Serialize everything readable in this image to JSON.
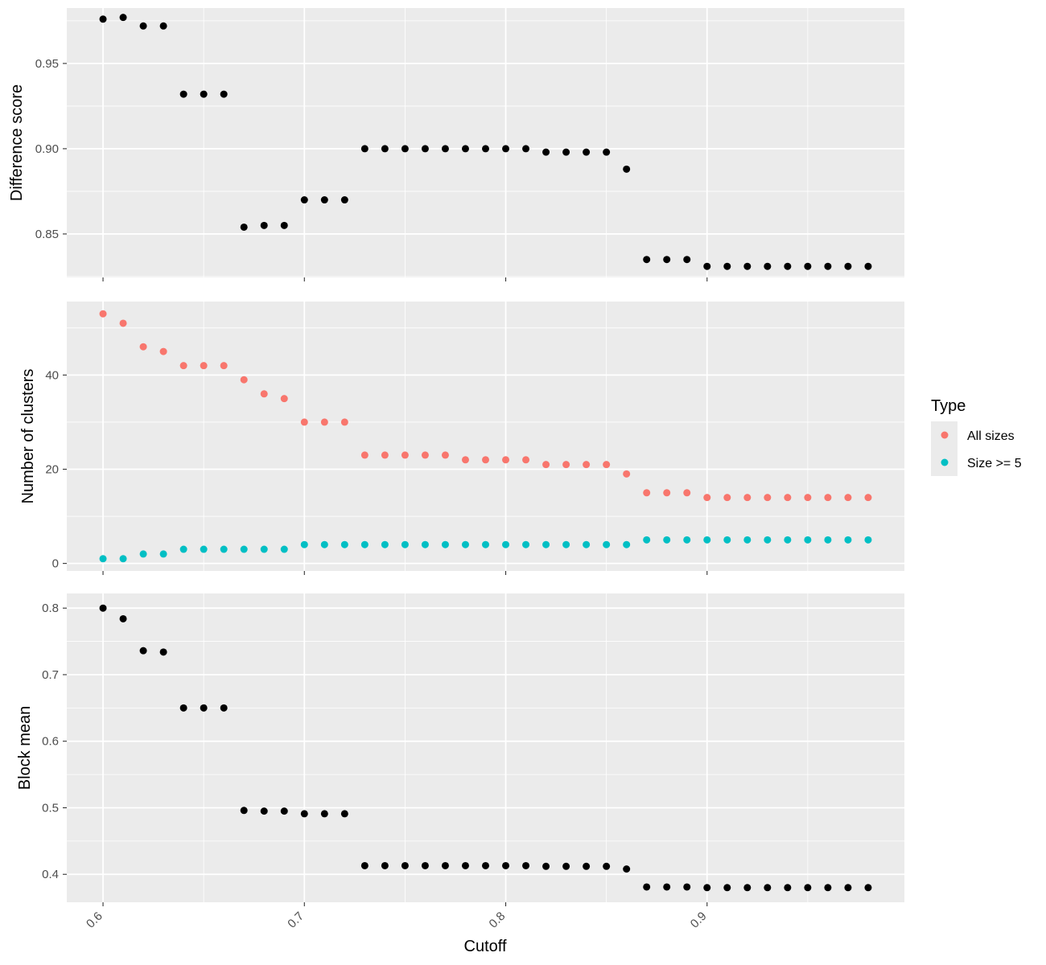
{
  "chart_data": {
    "type": "scatter",
    "x": [
      0.6,
      0.61,
      0.62,
      0.63,
      0.64,
      0.65,
      0.66,
      0.67,
      0.68,
      0.69,
      0.7,
      0.71,
      0.72,
      0.73,
      0.74,
      0.75,
      0.76,
      0.77,
      0.78,
      0.79,
      0.8,
      0.81,
      0.82,
      0.83,
      0.84,
      0.85,
      0.86,
      0.87,
      0.88,
      0.89,
      0.9,
      0.91,
      0.92,
      0.93,
      0.94,
      0.95,
      0.96,
      0.97,
      0.98
    ],
    "xlabel": "Cutoff",
    "xticks": [
      "0.6",
      "0.7",
      "0.8",
      "0.9"
    ],
    "xlim": [
      0.582,
      0.998
    ],
    "x_tick_rotation": "45 degrees",
    "background": "#ebebeb",
    "grid": true,
    "legend": {
      "title": "Type",
      "placement": "right",
      "entries": [
        {
          "label": "All sizes",
          "color": "#F8766D"
        },
        {
          "label": "Size >= 5",
          "color": "#00BFC4"
        }
      ]
    },
    "panels": [
      {
        "ylabel": "Difference score",
        "ylim": [
          0.8245,
          0.9825
        ],
        "yticks": [
          "0.85",
          "0.90",
          "0.95"
        ],
        "series": [
          {
            "color": "#000000",
            "values": [
              0.976,
              0.977,
              0.972,
              0.972,
              0.932,
              0.932,
              0.932,
              0.854,
              0.855,
              0.855,
              0.87,
              0.87,
              0.87,
              0.9,
              0.9,
              0.9,
              0.9,
              0.9,
              0.9,
              0.9,
              0.9,
              0.9,
              0.898,
              0.898,
              0.898,
              0.898,
              0.888,
              0.835,
              0.835,
              0.835,
              0.831,
              0.831,
              0.831,
              0.831,
              0.831,
              0.831,
              0.831,
              0.831,
              0.831
            ]
          }
        ]
      },
      {
        "ylabel": "Number of clusters",
        "ylim": [
          -1.6,
          55.6
        ],
        "yticks": [
          "0",
          "20",
          "40"
        ],
        "series": [
          {
            "name": "All sizes",
            "color": "#F8766D",
            "values": [
              53,
              51,
              46,
              45,
              42,
              42,
              42,
              39,
              36,
              35,
              30,
              30,
              30,
              23,
              23,
              23,
              23,
              23,
              22,
              22,
              22,
              22,
              21,
              21,
              21,
              21,
              19,
              15,
              15,
              15,
              14,
              14,
              14,
              14,
              14,
              14,
              14,
              14,
              14
            ]
          },
          {
            "name": "Size >= 5",
            "color": "#00BFC4",
            "values": [
              1,
              1,
              2,
              2,
              3,
              3,
              3,
              3,
              3,
              3,
              4,
              4,
              4,
              4,
              4,
              4,
              4,
              4,
              4,
              4,
              4,
              4,
              4,
              4,
              4,
              4,
              4,
              5,
              5,
              5,
              5,
              5,
              5,
              5,
              5,
              5,
              5,
              5,
              5
            ]
          }
        ]
      },
      {
        "ylabel": "Block mean",
        "ylim": [
          0.358,
          0.822
        ],
        "yticks": [
          "0.4",
          "0.5",
          "0.6",
          "0.7",
          "0.8"
        ],
        "series": [
          {
            "color": "#000000",
            "values": [
              0.8,
              0.784,
              0.736,
              0.734,
              0.65,
              0.65,
              0.65,
              0.496,
              0.495,
              0.495,
              0.491,
              0.491,
              0.491,
              0.413,
              0.413,
              0.413,
              0.413,
              0.413,
              0.413,
              0.413,
              0.413,
              0.413,
              0.412,
              0.412,
              0.412,
              0.412,
              0.408,
              0.381,
              0.381,
              0.381,
              0.38,
              0.38,
              0.38,
              0.38,
              0.38,
              0.38,
              0.38,
              0.38,
              0.38
            ]
          }
        ]
      }
    ]
  }
}
